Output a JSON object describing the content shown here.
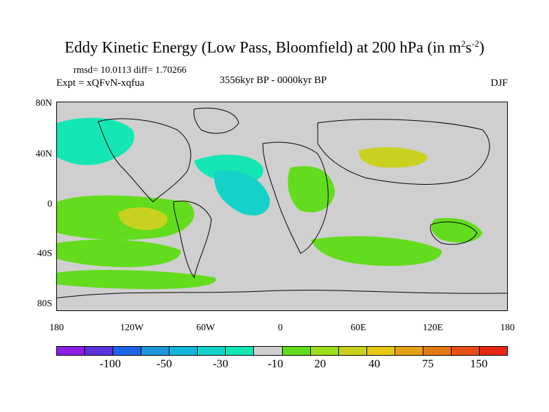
{
  "title_main": "Eddy Kinetic Energy (Low Pass, Bloomfield) at 200 hPa (in m",
  "title_sup1": "2",
  "title_s": "s",
  "title_sup2": "-2",
  "title_close": ")",
  "rmsd_text": "rmsd= 10.0113 diff= 1.70266",
  "expt_text": "Expt = xQFvN-xqfua",
  "period_text": "3556kyr BP - 0000kyr BP",
  "season_text": "DJF",
  "map": {
    "lat_labels": [
      "80N",
      "40N",
      "0",
      "40S",
      "80S"
    ],
    "lon_labels": [
      "180",
      "120W",
      "60W",
      "0",
      "60E",
      "120E",
      "180"
    ],
    "background_color": "#cfcfcf",
    "coast_color": "#000000"
  },
  "colorbar": {
    "colors": [
      "#8c1ee6",
      "#5a32dc",
      "#1e64e6",
      "#1e96dc",
      "#14b4dc",
      "#14d2c8",
      "#14e6b4",
      "#cfcfcf",
      "#64dc1e",
      "#a0dc1e",
      "#c8d21e",
      "#e6c814",
      "#e6a014",
      "#e67814",
      "#e65014",
      "#e62814"
    ],
    "labels": [
      "-100",
      "-50",
      "-30",
      "-10",
      "20",
      "40",
      "75",
      "150"
    ]
  },
  "fields": [
    {
      "name": "cyan-arctic-pacific",
      "color": "#14e6b4"
    },
    {
      "name": "cyan-north-atlantic",
      "color": "#14e6b4"
    },
    {
      "name": "cyan-tropical-atlantic",
      "color": "#14d2c8"
    },
    {
      "name": "green-tropical-pacific",
      "color": "#64dc1e"
    },
    {
      "name": "yellow-pacific-core",
      "color": "#c8d21e"
    },
    {
      "name": "green-south-pacific",
      "color": "#64dc1e"
    },
    {
      "name": "green-south-atlantic",
      "color": "#64dc1e"
    },
    {
      "name": "green-indian-ocean",
      "color": "#64dc1e"
    },
    {
      "name": "yellow-asia-core",
      "color": "#c8d21e"
    },
    {
      "name": "green-australia",
      "color": "#64dc1e"
    },
    {
      "name": "green-africa",
      "color": "#64dc1e"
    }
  ]
}
